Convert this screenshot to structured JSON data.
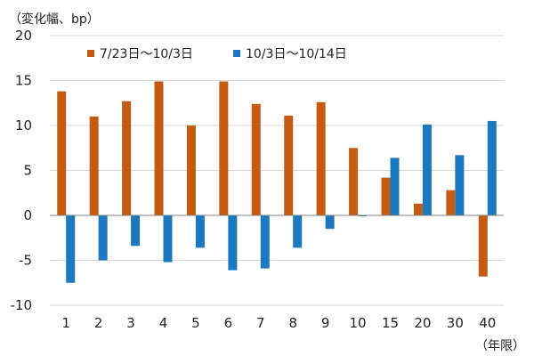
{
  "chart_data": {
    "type": "bar",
    "title": "",
    "ylabel": "（変化幅、bp）",
    "xlabel": "（年限）",
    "ylim": [
      -10,
      20
    ],
    "yticks": [
      -10,
      -5,
      0,
      5,
      10,
      15,
      20
    ],
    "grid": true,
    "legend_position": "top-left",
    "categories": [
      "1",
      "2",
      "3",
      "4",
      "5",
      "6",
      "7",
      "8",
      "9",
      "10",
      "15",
      "20",
      "30",
      "40"
    ],
    "series": [
      {
        "name": "7/23日～10/3日",
        "color": "#c55a11",
        "values": [
          13.8,
          11.0,
          12.7,
          14.9,
          10.0,
          14.9,
          12.4,
          11.1,
          12.6,
          7.5,
          4.2,
          1.3,
          2.8,
          -6.8
        ]
      },
      {
        "name": "10/3日～10/14日",
        "color": "#1c79c0",
        "values": [
          -7.5,
          -5.0,
          -3.4,
          -5.2,
          -3.6,
          -6.1,
          -5.9,
          -3.6,
          -1.5,
          -0.1,
          6.4,
          10.1,
          6.7,
          10.5
        ]
      }
    ]
  }
}
